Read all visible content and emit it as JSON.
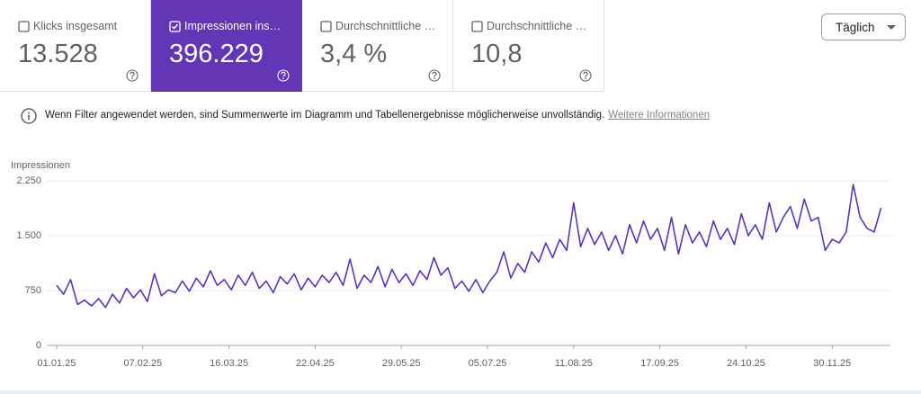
{
  "metrics": [
    {
      "label": "Klicks insgesamt",
      "value": "13.528",
      "checked": false
    },
    {
      "label": "Impressionen ins…",
      "value": "396.229",
      "checked": true
    },
    {
      "label": "Durchschnittliche …",
      "value": "3,4 %",
      "checked": false
    },
    {
      "label": "Durchschnittliche …",
      "value": "10,8",
      "checked": false
    }
  ],
  "dropdown": "Täglich",
  "notice": {
    "text": "Wenn Filter angewendet werden, sind Summenwerte im Diagramm und Tabellenergebnisse möglicherweise unvollständig.",
    "link": "Weitere Informationen"
  },
  "chart_data": {
    "type": "line",
    "y_label": "Impressionen",
    "color": "#5e35b1",
    "grid": true,
    "x": [
      0,
      3,
      6,
      9,
      12,
      15,
      18,
      21,
      24,
      27,
      30,
      33,
      36,
      39,
      42,
      45,
      48,
      51,
      54,
      57,
      60,
      63,
      66,
      69,
      72,
      75,
      78,
      81,
      84,
      87,
      90,
      93,
      96,
      99,
      102,
      105,
      108,
      111,
      114,
      117,
      120,
      123,
      126,
      129,
      132,
      135,
      138,
      141,
      144,
      147,
      150,
      153,
      156,
      159,
      162,
      165,
      168,
      171,
      174,
      177,
      180,
      183,
      186,
      189,
      192,
      195,
      198,
      201,
      204,
      207,
      210,
      213,
      216,
      219,
      222,
      225,
      228,
      231,
      234,
      237,
      240,
      243,
      246,
      249,
      252,
      255,
      258,
      261,
      264,
      267,
      270,
      273,
      276,
      279,
      282,
      285,
      288,
      291,
      294,
      297,
      300,
      303,
      306,
      309,
      312,
      315,
      318,
      321,
      324,
      327,
      330,
      333,
      336,
      339,
      342,
      345,
      348,
      351,
      354
    ],
    "values": [
      820,
      700,
      900,
      560,
      620,
      540,
      640,
      520,
      700,
      580,
      780,
      650,
      760,
      600,
      980,
      680,
      760,
      720,
      880,
      740,
      920,
      800,
      1020,
      820,
      900,
      760,
      960,
      820,
      1000,
      780,
      880,
      720,
      940,
      840,
      980,
      760,
      920,
      800,
      960,
      860,
      1000,
      820,
      1180,
      780,
      960,
      860,
      1080,
      800,
      1040,
      860,
      980,
      820,
      1020,
      900,
      1200,
      960,
      1060,
      780,
      880,
      740,
      900,
      720,
      880,
      1000,
      1280,
      920,
      1120,
      1000,
      1280,
      1140,
      1400,
      1200,
      1450,
      1300,
      1950,
      1350,
      1600,
      1380,
      1550,
      1300,
      1500,
      1250,
      1650,
      1400,
      1700,
      1450,
      1600,
      1300,
      1750,
      1250,
      1650,
      1400,
      1550,
      1350,
      1700,
      1450,
      1600,
      1380,
      1800,
      1500,
      1650,
      1450,
      1950,
      1550,
      1750,
      1900,
      1600,
      2000,
      1700,
      1750,
      1300,
      1450,
      1400,
      1550,
      2200,
      1750,
      1600,
      1550,
      1880
    ],
    "xlim": [
      -4,
      358
    ],
    "xticks": [
      {
        "value": 0,
        "label": "01.01.25"
      },
      {
        "value": 37,
        "label": "07.02.25"
      },
      {
        "value": 74,
        "label": "16.03.25"
      },
      {
        "value": 111,
        "label": "22.04.25"
      },
      {
        "value": 148,
        "label": "29.05.25"
      },
      {
        "value": 185,
        "label": "05.07.25"
      },
      {
        "value": 222,
        "label": "11.08.25"
      },
      {
        "value": 259,
        "label": "17.09.25"
      },
      {
        "value": 296,
        "label": "24.10.25"
      },
      {
        "value": 333,
        "label": "30.11.25"
      }
    ],
    "ylim": [
      0,
      2250
    ],
    "yticks": [
      0,
      750,
      {
        "value": 1500,
        "label": "1.500"
      },
      {
        "value": 2250,
        "label": "2.250"
      }
    ]
  }
}
